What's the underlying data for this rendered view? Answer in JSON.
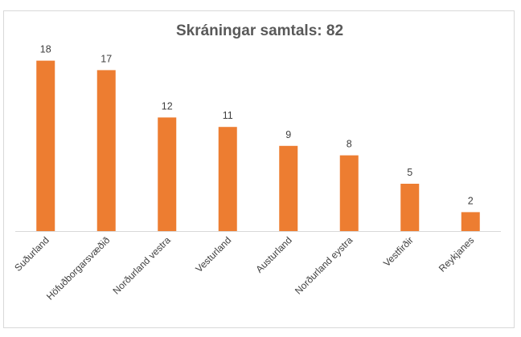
{
  "chart_data": {
    "type": "bar",
    "title": "Skráningar samtals: 82",
    "xlabel": "",
    "ylabel": "",
    "categories": [
      "Suðurland",
      "Höfuðborgarsvæðið",
      "Norðurland vestra",
      "Vesturland",
      "Austurland",
      "Norðurland eystra",
      "Vestfirðir",
      "Reykjanes"
    ],
    "values": [
      18,
      17,
      12,
      11,
      9,
      8,
      5,
      2
    ],
    "ylim": [
      0,
      20
    ],
    "grid": false,
    "legend": "none",
    "bar_color": "#ed7d31",
    "axis_color": "#d9d9d9"
  }
}
